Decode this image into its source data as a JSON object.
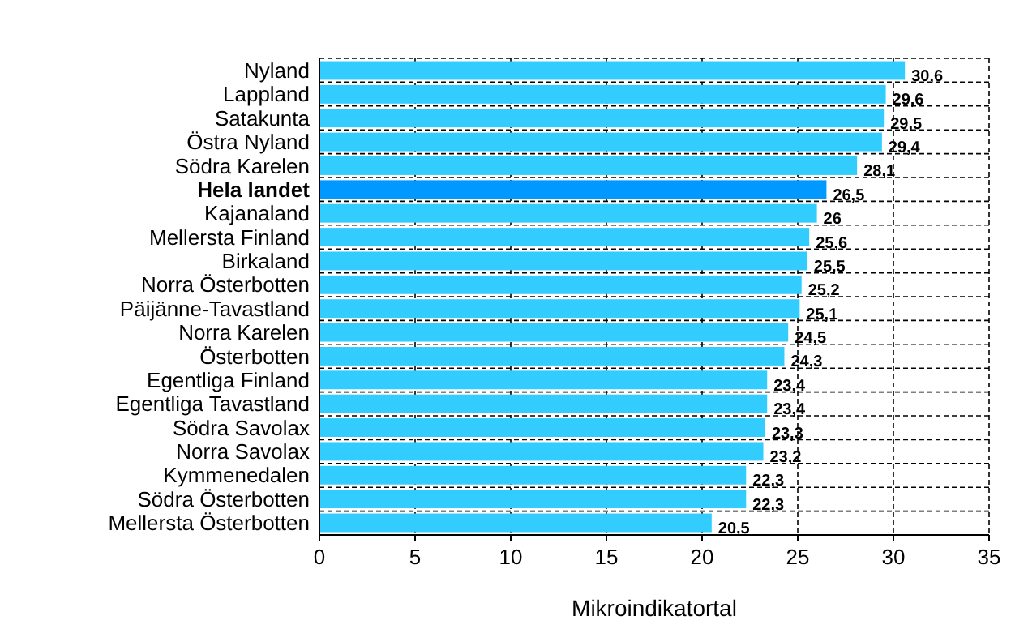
{
  "chart_data": {
    "type": "bar",
    "orientation": "horizontal",
    "xlabel": "Mikroindikatortal",
    "categories": [
      "Nyland",
      "Lappland",
      "Satakunta",
      "Östra Nyland",
      "Södra Karelen",
      "Hela landet",
      "Kajanaland",
      "Mellersta Finland",
      "Birkaland",
      "Norra Österbotten",
      "Päijänne-Tavastland",
      "Norra Karelen",
      "Österbotten",
      "Egentliga Finland",
      "Egentliga Tavastland",
      "Södra Savolax",
      "Norra Savolax",
      "Kymmenedalen",
      "Södra Österbotten",
      "Mellersta Österbotten"
    ],
    "values": [
      30.6,
      29.6,
      29.5,
      29.4,
      28.1,
      26.5,
      26,
      25.6,
      25.5,
      25.2,
      25.1,
      24.5,
      24.3,
      23.4,
      23.4,
      23.3,
      23.2,
      22.3,
      22.3,
      20.5
    ],
    "value_labels": [
      "30,6",
      "29,6",
      "29,5",
      "29,4",
      "28,1",
      "26,5",
      "26",
      "25,6",
      "25,5",
      "25,2",
      "25,1",
      "24,5",
      "24,3",
      "23,4",
      "23,4",
      "23,3",
      "23,2",
      "22,3",
      "22,3",
      "20,5"
    ],
    "colors": [
      "#33ccff",
      "#33ccff",
      "#33ccff",
      "#33ccff",
      "#33ccff",
      "#0099ff",
      "#33ccff",
      "#33ccff",
      "#33ccff",
      "#33ccff",
      "#33ccff",
      "#33ccff",
      "#33ccff",
      "#33ccff",
      "#33ccff",
      "#33ccff",
      "#33ccff",
      "#33ccff",
      "#33ccff",
      "#33ccff"
    ],
    "xlim": [
      0,
      35
    ],
    "xticks": [
      0,
      5,
      10,
      15,
      20,
      25,
      30,
      35
    ],
    "grid": true
  }
}
